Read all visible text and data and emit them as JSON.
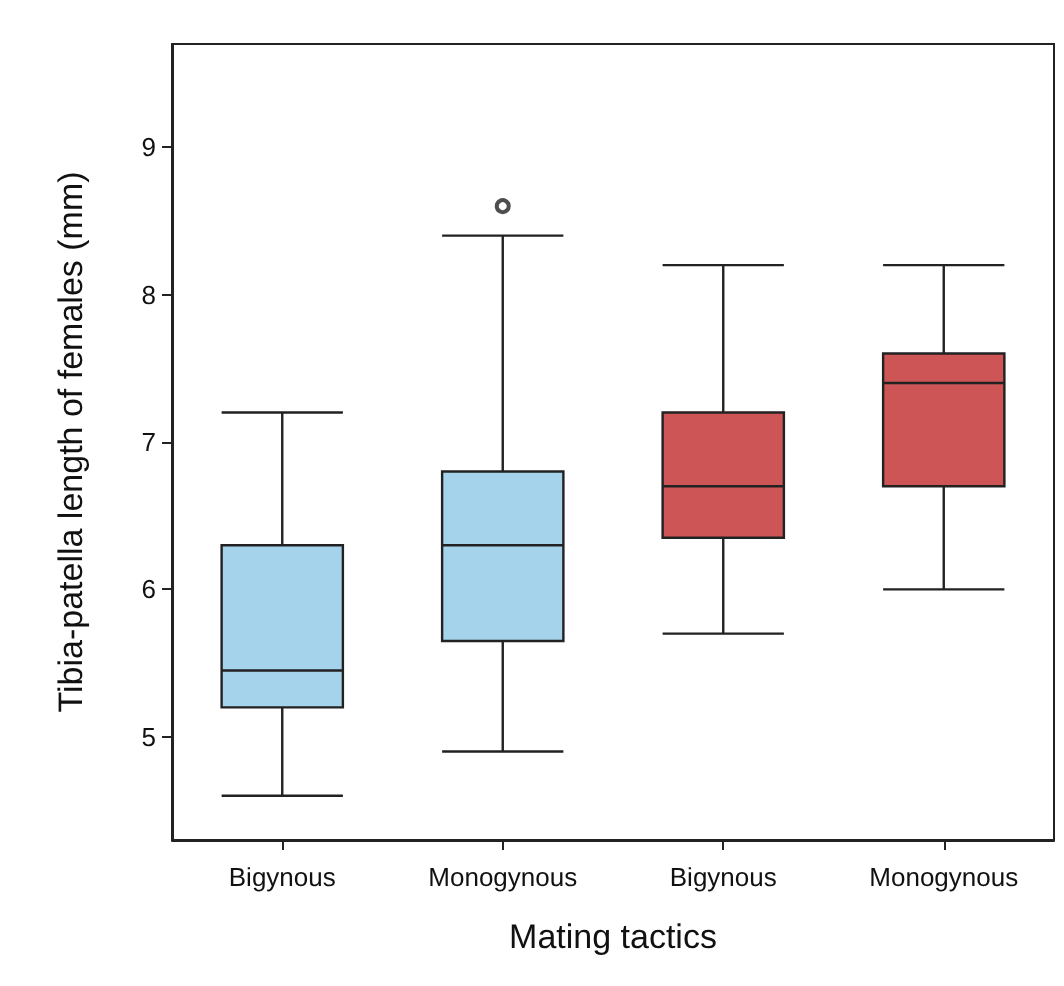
{
  "chart_data": {
    "type": "box",
    "xlabel": "Mating tactics",
    "ylabel": "Tibia-patella length of females (mm)",
    "categories": [
      "Bigynous",
      "Monogynous",
      "Bigynous",
      "Monogynous"
    ],
    "colors": [
      "#a6d3ec",
      "#a6d3ec",
      "#cd5555",
      "#cd5555"
    ],
    "boxes": [
      {
        "low": 4.6,
        "q1": 5.2,
        "median": 5.45,
        "q3": 6.3,
        "high": 7.2
      },
      {
        "low": 4.9,
        "q1": 5.65,
        "median": 6.3,
        "q3": 6.8,
        "high": 8.4,
        "outliers": [
          8.6
        ]
      },
      {
        "low": 5.7,
        "q1": 6.35,
        "median": 6.7,
        "q3": 7.2,
        "high": 8.2
      },
      {
        "low": 6.0,
        "q1": 6.7,
        "median": 7.4,
        "q3": 7.6,
        "high": 8.2
      }
    ],
    "ylim": [
      4.3,
      9.7
    ],
    "yticks": [
      5,
      6,
      7,
      8,
      9
    ],
    "grid": false
  }
}
